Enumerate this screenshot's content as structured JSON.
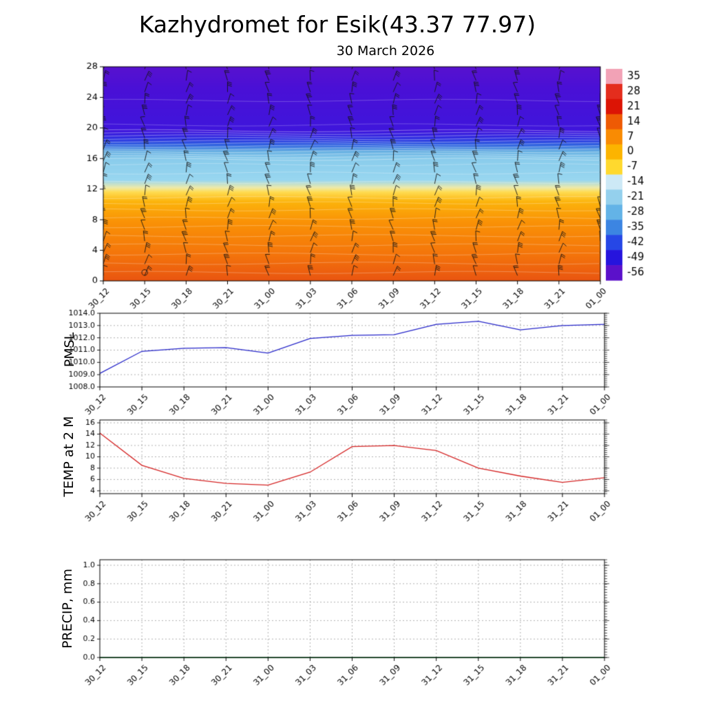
{
  "title": "Kazhydromet for Esik(43.37 77.97)",
  "subtitle": "30 March 2026",
  "times": [
    "30_12",
    "30_15",
    "30_18",
    "30_21",
    "31_00",
    "31_03",
    "31_06",
    "31_09",
    "31_12",
    "31_15",
    "31_18",
    "31_21",
    "01_00"
  ],
  "chart_data": [
    {
      "type": "heatmap",
      "name": "upper-air-temperature-wind-profile",
      "ylim": [
        0,
        28
      ],
      "ytick_values": [
        0,
        4,
        8,
        12,
        16,
        20,
        24,
        28
      ],
      "ytick_labels": [
        "0",
        "4",
        "8",
        "12",
        "16",
        "20",
        "24",
        "28"
      ],
      "colorbar_ticks": [
        "35",
        "28",
        "21",
        "14",
        "7",
        "0",
        "-7",
        "-14",
        "-21",
        "-28",
        "-35",
        "-42",
        "-49",
        "-56"
      ],
      "colorbar_colors": [
        "#f2a2b6",
        "#e42d1d",
        "#dc1405",
        "#ee5a04",
        "#f98b03",
        "#fcb400",
        "#ffd92e",
        "#cde9f6",
        "#94d0ed",
        "#63b3e7",
        "#3c85e2",
        "#2647e6",
        "#2614dd",
        "#5b11ca"
      ],
      "gradient_stops": [
        [
          0.0,
          "#5812cf"
        ],
        [
          0.1,
          "#4a10d6"
        ],
        [
          0.3,
          "#3f16dc"
        ],
        [
          0.335,
          "#3030e2"
        ],
        [
          0.365,
          "#2f62e0"
        ],
        [
          0.395,
          "#66b0e2"
        ],
        [
          0.43,
          "#8accec"
        ],
        [
          0.53,
          "#99d7f0"
        ],
        [
          0.565,
          "#efeaa8"
        ],
        [
          0.585,
          "#ffdc52"
        ],
        [
          0.63,
          "#fcb40c"
        ],
        [
          0.72,
          "#fa9306"
        ],
        [
          0.88,
          "#f4740b"
        ],
        [
          1.0,
          "#e95511"
        ]
      ],
      "wind_barbs": "procedural overlay, values not legible"
    },
    {
      "type": "line",
      "title": "PMSL",
      "color": "#2323c8",
      "ylim": [
        1008,
        1014
      ],
      "ytick_values": [
        1008,
        1009,
        1010,
        1011,
        1012,
        1013,
        1014
      ],
      "ytick_labels": [
        "1008.0",
        "1009.0",
        "1010.0",
        "1011.0",
        "1012.0",
        "1013.0",
        "1014.0"
      ],
      "values": [
        1009.1,
        1010.9,
        1011.15,
        1011.2,
        1010.75,
        1011.95,
        1012.2,
        1012.25,
        1013.1,
        1013.35,
        1012.65,
        1013.0,
        1013.1
      ]
    },
    {
      "type": "line",
      "title": "TEMP at 2 M",
      "color": "#d42222",
      "ylim": [
        3.5,
        16.5
      ],
      "ytick_values": [
        4,
        6,
        8,
        10,
        12,
        14,
        16
      ],
      "ytick_labels": [
        "4",
        "6",
        "8",
        "10",
        "12",
        "14",
        "16"
      ],
      "values": [
        14.2,
        8.5,
        6.2,
        5.3,
        5.0,
        7.3,
        11.8,
        12.0,
        11.1,
        8.0,
        6.6,
        5.5,
        6.3
      ]
    },
    {
      "type": "line",
      "title": "PRECIP, mm",
      "color": "#006622",
      "ylim": [
        0,
        1.06
      ],
      "ytick_values": [
        0,
        0.2,
        0.4,
        0.6,
        0.8,
        1.0
      ],
      "ytick_labels": [
        "0.0",
        "0.2",
        "0.4",
        "0.6",
        "0.8",
        "1.0"
      ],
      "values": [
        0,
        0,
        0,
        0,
        0,
        0,
        0,
        0,
        0,
        0,
        0,
        0,
        0
      ]
    }
  ]
}
